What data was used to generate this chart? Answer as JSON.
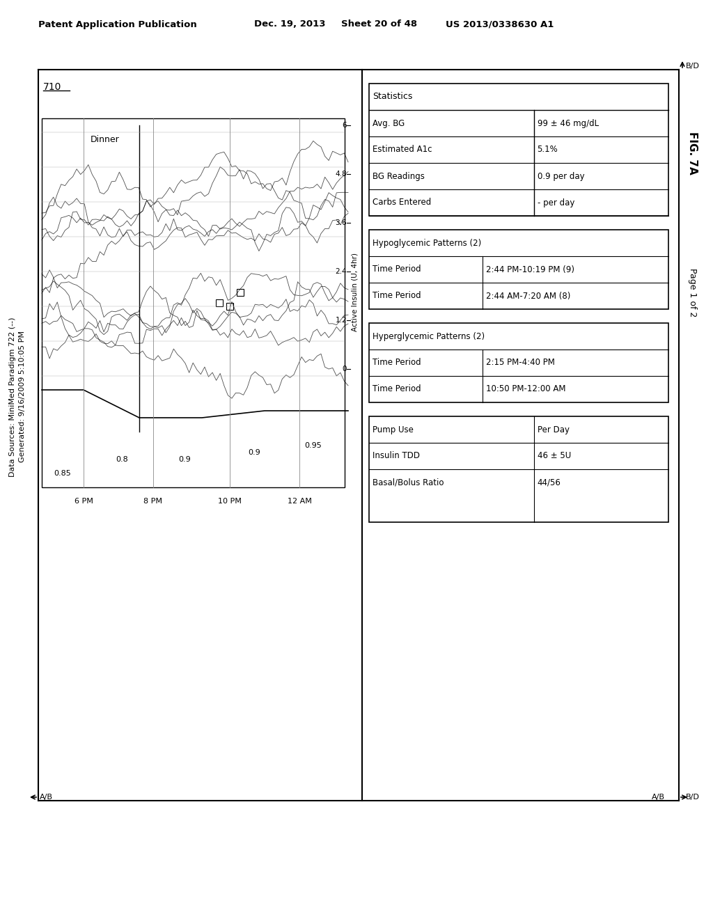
{
  "patent_header": "Patent Application Publication    Dec. 19, 2013  Sheet 20 of 48    US 2013/0338630 A1",
  "patent_left": "Patent Application Publication",
  "patent_date": "Dec. 19, 2013",
  "patent_sheet": "Sheet 20 of 48",
  "patent_number": "US 2013/0338630 A1",
  "fig_label": "FIG. 7A",
  "page_label": "Page 1 of 2",
  "generated_label": "Generated: 9/16/2009 5:10:05 PM",
  "data_sources_label": "Data Sources: MiniMed Paradigm 722 (--)",
  "diagram_num": "710",
  "ab_bottom_left": "←A/B",
  "ab_bottom_right": "A/B→",
  "bd_top_right": "B/D↑",
  "bd_bottom_right": "B/D",
  "dinner_label": "Dinner",
  "stats_title": "Statistics",
  "stats_rows": [
    [
      "Avg. BG",
      "99 ± 46 mg/dL"
    ],
    [
      "Estimated A1c",
      "5.1%"
    ],
    [
      "BG Readings",
      "0.9 per day"
    ],
    [
      "Carbs Entered",
      "- per day"
    ]
  ],
  "hypo_title": "Hypoglycemic Patterns (2)",
  "hypo_rows": [
    [
      "Time Period",
      "2:44 PM-10:19 PM (9)"
    ],
    [
      "Time Period",
      "2:44 AM-7:20 AM (8)"
    ]
  ],
  "hyper_title": "Hyperglycemic Patterns (2)",
  "hyper_rows": [
    [
      "Time Period",
      "2:15 PM-4:40 PM"
    ],
    [
      "Time Period",
      "10:50 PM-12:00 AM"
    ]
  ],
  "pump_title": "Pump Use",
  "pump_rows": [
    [
      "Pump Use",
      "Per Day"
    ],
    [
      "Insulin TDD",
      "46 ± 5U"
    ],
    [
      "Basal/Bolus Ratio",
      "44/56"
    ]
  ],
  "active_insulin_label": "Active Insulin (U, 4hr)",
  "ai_ticks": [
    "6",
    "4.8",
    "3.6",
    "2.4",
    "1.2",
    "0"
  ],
  "time_ticks": [
    "6 PM",
    "8 PM",
    "10 PM",
    "12 AM"
  ],
  "basal_values": [
    "0.85",
    "0.8",
    "0.9",
    "0.9",
    "0.95"
  ],
  "background_color": "#ffffff",
  "line_color": "#000000",
  "border_color": "#000000"
}
